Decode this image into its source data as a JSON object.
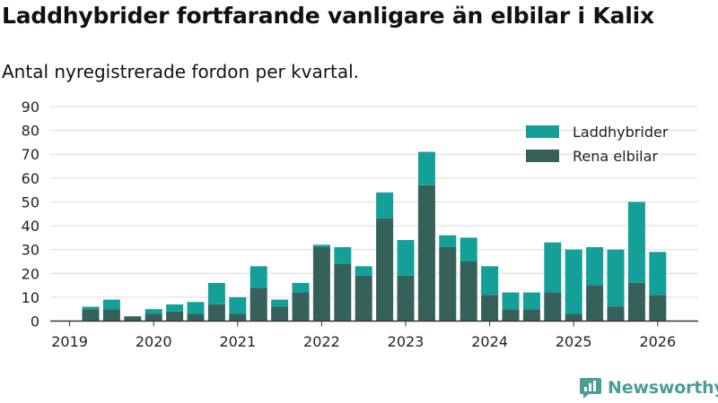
{
  "title": "Laddhybrider fortfarande vanligare än elbilar i Kalix",
  "subtitle": "Antal nyregistrerade fordon per kvartal.",
  "brand": "Newsworthy",
  "colors": {
    "phev": "#14a098",
    "bev": "#36605a",
    "grid": "#dcdcdc",
    "axis": "#333333",
    "text": "#222222"
  },
  "chart_data": {
    "type": "bar",
    "stacked": true,
    "title": "Laddhybrider fortfarande vanligare än elbilar i Kalix",
    "subtitle": "Antal nyregistrerade fordon per kvartal.",
    "xlabel": "",
    "ylabel": "",
    "ylim": [
      0,
      90
    ],
    "yticks": [
      0,
      10,
      20,
      30,
      40,
      50,
      60,
      70,
      80,
      90
    ],
    "grid": true,
    "legend_position": "top-right",
    "x_tick_labels": [
      "2019",
      "2020",
      "2021",
      "2022",
      "2023",
      "2024",
      "2025",
      "2026"
    ],
    "categories": [
      "2019 Q2",
      "2019 Q3",
      "2019 Q4",
      "2020 Q1",
      "2020 Q2",
      "2020 Q3",
      "2020 Q4",
      "2021 Q1",
      "2021 Q2",
      "2021 Q3",
      "2021 Q4",
      "2022 Q1",
      "2022 Q2",
      "2022 Q3",
      "2022 Q4",
      "2023 Q1",
      "2023 Q2",
      "2023 Q3",
      "2023 Q4",
      "2024 Q1",
      "2024 Q2",
      "2024 Q3",
      "2024 Q4",
      "2025 Q1",
      "2025 Q2",
      "2025 Q3",
      "2025 Q4",
      "2026 Q1"
    ],
    "series": [
      {
        "name": "Rena elbilar",
        "key": "bev",
        "values": [
          5,
          5,
          2,
          3,
          4,
          3,
          7,
          3,
          14,
          6,
          12,
          31,
          24,
          19,
          43,
          19,
          57,
          31,
          25,
          11,
          5,
          5,
          12,
          3,
          15,
          6,
          16,
          11
        ]
      },
      {
        "name": "Laddhybrider",
        "key": "phev",
        "values": [
          1,
          4,
          0,
          2,
          3,
          5,
          9,
          7,
          9,
          3,
          4,
          1,
          7,
          4,
          11,
          15,
          14,
          5,
          10,
          12,
          7,
          7,
          21,
          27,
          16,
          24,
          34,
          18
        ]
      }
    ],
    "legend": [
      "Laddhybrider",
      "Rena elbilar"
    ]
  }
}
